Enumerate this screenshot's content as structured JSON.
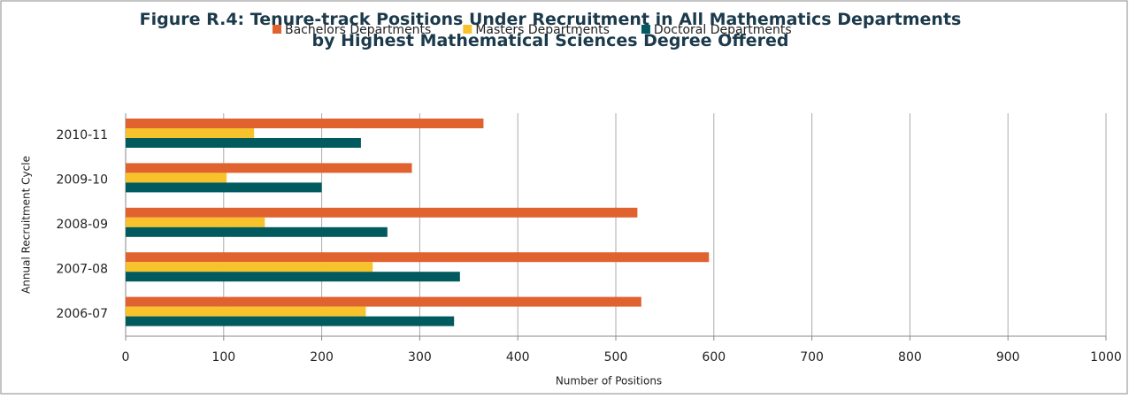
{
  "chart_data": {
    "type": "bar",
    "orientation": "horizontal",
    "title": "Figure R.4: Tenure-track Positions Under Recruitment in All Mathematics Departments by Highest Mathematical Sciences Degree Offered",
    "xlabel": "Number of Positions",
    "ylabel": "Annual Recruitment Cycle",
    "categories": [
      "2010-11",
      "2009-10",
      "2008-09",
      "2007-08",
      "2006-07"
    ],
    "series": [
      {
        "name": "Bachelors Departments",
        "color": "#e0622f",
        "values": [
          365,
          292,
          522,
          595,
          526
        ]
      },
      {
        "name": "Masters Departments",
        "color": "#f8c22c",
        "values": [
          131,
          103,
          142,
          252,
          245
        ]
      },
      {
        "name": "Doctoral Departments",
        "color": "#005a5e",
        "values": [
          240,
          200,
          267,
          341,
          335
        ]
      }
    ],
    "xlim": [
      0,
      1000
    ],
    "xticks": [
      0,
      100,
      200,
      300,
      400,
      500,
      600,
      700,
      800,
      900,
      1000
    ],
    "grid": true,
    "legend": "top"
  }
}
